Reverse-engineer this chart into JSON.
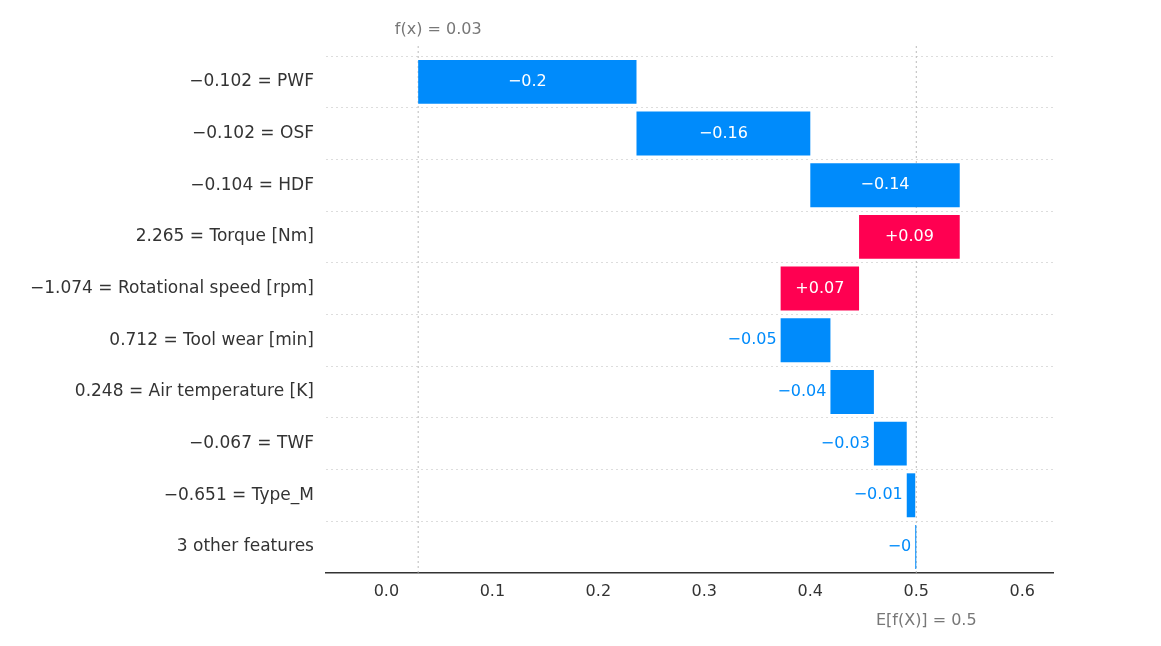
{
  "chart_data": {
    "type": "bar",
    "orientation": "horizontal",
    "categories": [
      "−0.102 = PWF",
      "−0.102 = OSF",
      "−0.104 = HDF",
      "2.265 = Torque [Nm]",
      "−1.074 = Rotational speed [rpm]",
      "0.712 = Tool wear [min]",
      "0.248 = Air temperature [K]",
      "−0.067 = TWF",
      "−0.651 = Type_M",
      "3 other features"
    ],
    "base": [
      0.236,
      0.4,
      0.541,
      0.446,
      0.372,
      0.419,
      0.46,
      0.491,
      0.499,
      0.5
    ],
    "values": [
      -0.206,
      -0.164,
      -0.141,
      0.095,
      0.074,
      -0.047,
      -0.041,
      -0.031,
      -0.008,
      -0.001
    ],
    "colors": [
      "#008bfb",
      "#008bfb",
      "#008bfb",
      "#ff0051",
      "#ff0051",
      "#008bfb",
      "#008bfb",
      "#008bfb",
      "#008bfb",
      "#008bfb"
    ],
    "value_labels": [
      "−0.2",
      "−0.16",
      "−0.14",
      "+0.09",
      "+0.07",
      "−0.05",
      "−0.04",
      "−0.03",
      "−0.01",
      "−0"
    ],
    "xlim": [
      -0.057,
      0.629
    ],
    "xticks": [
      {
        "value": 0,
        "label": "0.0"
      },
      0.1,
      0.2,
      0.3,
      0.4,
      0.5,
      0.6
    ],
    "ref_lines": [
      {
        "axis": "x",
        "value": 0.03,
        "label": "f(x) = 0.03",
        "line_style": "dotted"
      },
      {
        "axis": "x",
        "value": 0.5,
        "label": "E[f(X)] = 0.5",
        "line_style": "dotted"
      }
    ],
    "grid": "y",
    "legend": false
  }
}
